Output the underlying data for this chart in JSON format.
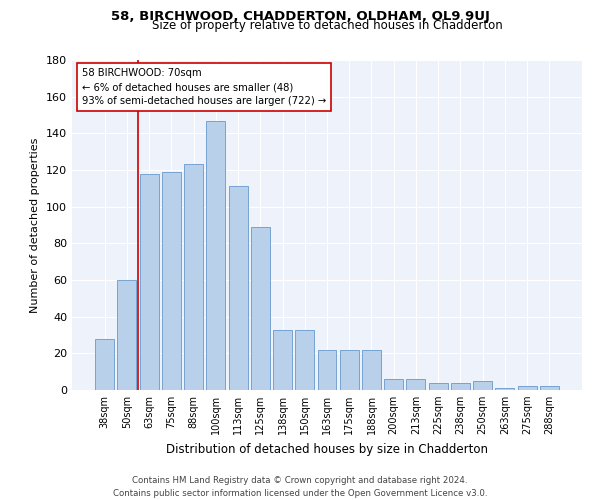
{
  "title1": "58, BIRCHWOOD, CHADDERTON, OLDHAM, OL9 9UJ",
  "title2": "Size of property relative to detached houses in Chadderton",
  "xlabel": "Distribution of detached houses by size in Chadderton",
  "ylabel": "Number of detached properties",
  "categories": [
    "38sqm",
    "50sqm",
    "63sqm",
    "75sqm",
    "88sqm",
    "100sqm",
    "113sqm",
    "125sqm",
    "138sqm",
    "150sqm",
    "163sqm",
    "175sqm",
    "188sqm",
    "200sqm",
    "213sqm",
    "225sqm",
    "238sqm",
    "250sqm",
    "263sqm",
    "275sqm",
    "288sqm"
  ],
  "values": [
    28,
    60,
    118,
    119,
    123,
    147,
    111,
    89,
    33,
    33,
    22,
    22,
    22,
    6,
    6,
    4,
    4,
    5,
    1,
    2,
    2
  ],
  "bar_color": "#b8d0ea",
  "bar_edge_color": "#6699cc",
  "annotation_text_line1": "58 BIRCHWOOD: 70sqm",
  "annotation_text_line2": "← 6% of detached houses are smaller (48)",
  "annotation_text_line3": "93% of semi-detached houses are larger (722) →",
  "annotation_box_color": "#ffffff",
  "annotation_box_edge": "#cc0000",
  "vline_color": "#cc0000",
  "vline_x": 1.5,
  "ylim": [
    0,
    180
  ],
  "yticks": [
    0,
    20,
    40,
    60,
    80,
    100,
    120,
    140,
    160,
    180
  ],
  "bg_color": "#eef2fa",
  "footer1": "Contains HM Land Registry data © Crown copyright and database right 2024.",
  "footer2": "Contains public sector information licensed under the Open Government Licence v3.0."
}
